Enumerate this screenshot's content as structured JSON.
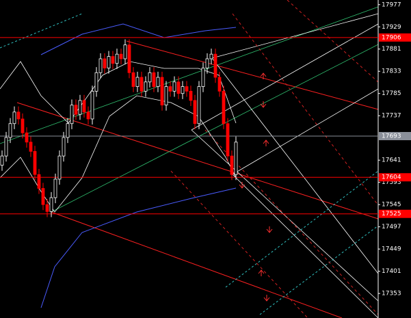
{
  "chart_data": {
    "type": "candlestick",
    "ylim": [
      17300,
      17987
    ],
    "yticks": [
      17977,
      17929,
      17881,
      17833,
      17785,
      17737,
      17641,
      17593,
      17545,
      17497,
      17449,
      17401,
      17353
    ],
    "up_color": "#ffffff",
    "down_color": "#ff0000",
    "open": [
      17630,
      17650,
      17690,
      17720,
      17745,
      17730,
      17700,
      17680,
      17660,
      17610,
      17580,
      17545,
      17530,
      17560,
      17600,
      17650,
      17690,
      17720,
      17760,
      17740,
      17770,
      17745,
      17730,
      17790,
      17830,
      17860,
      17840,
      17865,
      17850,
      17870,
      17860,
      17890,
      17830,
      17800,
      17820,
      17790,
      17810,
      17830,
      17800,
      17820,
      17760,
      17800,
      17790,
      17810,
      17785,
      17800,
      17790,
      17770,
      17720,
      17800,
      17840,
      17860,
      17870,
      17820,
      17790,
      17720,
      17650,
      17610
    ],
    "high": [
      17662,
      17702,
      17732,
      17757,
      17757,
      17742,
      17712,
      17692,
      17672,
      17622,
      17592,
      17557,
      17572,
      17612,
      17662,
      17702,
      17732,
      17772,
      17772,
      17782,
      17782,
      17757,
      17802,
      17842,
      17872,
      17872,
      17877,
      17877,
      17882,
      17882,
      17902,
      17902,
      17842,
      17832,
      17832,
      17822,
      17842,
      17842,
      17832,
      17832,
      17812,
      17812,
      17822,
      17822,
      17812,
      17812,
      17802,
      17782,
      17812,
      17852,
      17872,
      17882,
      17882,
      17832,
      17802,
      17732,
      17662,
      17692
    ],
    "low": [
      17618,
      17638,
      17678,
      17708,
      17718,
      17688,
      17668,
      17648,
      17598,
      17568,
      17533,
      17518,
      17518,
      17548,
      17588,
      17638,
      17678,
      17708,
      17728,
      17728,
      17733,
      17718,
      17718,
      17778,
      17818,
      17828,
      17828,
      17838,
      17838,
      17848,
      17848,
      17818,
      17788,
      17788,
      17778,
      17778,
      17798,
      17788,
      17788,
      17748,
      17748,
      17778,
      17778,
      17773,
      17773,
      17778,
      17758,
      17708,
      17708,
      17788,
      17828,
      17848,
      17808,
      17778,
      17708,
      17638,
      17598,
      17598
    ],
    "close": [
      17650,
      17690,
      17720,
      17745,
      17730,
      17700,
      17680,
      17660,
      17610,
      17580,
      17545,
      17530,
      17560,
      17600,
      17650,
      17690,
      17720,
      17760,
      17740,
      17770,
      17745,
      17730,
      17790,
      17830,
      17860,
      17840,
      17865,
      17850,
      17870,
      17860,
      17890,
      17830,
      17800,
      17820,
      17790,
      17810,
      17830,
      17800,
      17820,
      17760,
      17800,
      17790,
      17810,
      17785,
      17800,
      17790,
      17770,
      17720,
      17800,
      17840,
      17860,
      17870,
      17820,
      17790,
      17720,
      17650,
      17610,
      17680
    ],
    "levels": [
      {
        "value": 17906,
        "label": "17906",
        "color": "#ff0000"
      },
      {
        "value": 17693,
        "label": "17693",
        "color": "#8a8f99"
      },
      {
        "value": 17604,
        "label": "17604",
        "color": "#ff0000"
      },
      {
        "value": 17525,
        "label": "17525",
        "color": "#ff0000"
      }
    ]
  }
}
